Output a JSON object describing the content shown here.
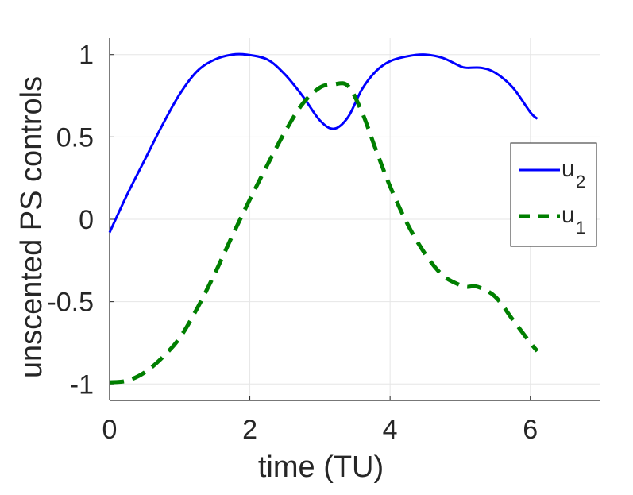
{
  "chart_data": {
    "type": "line",
    "title": "",
    "xlabel": "time (TU)",
    "ylabel": "unscented PS controls",
    "xlim": [
      0,
      7
    ],
    "ylim": [
      -1.1,
      1.1
    ],
    "grid": true,
    "legend_placement": "east",
    "x_ticks": [
      {
        "value": 0,
        "label": "0"
      },
      {
        "value": 2,
        "label": "2"
      },
      {
        "value": 4,
        "label": "4"
      },
      {
        "value": 6,
        "label": "6"
      }
    ],
    "y_ticks": [
      {
        "value": -1,
        "label": "-1"
      },
      {
        "value": -0.5,
        "label": "-0.5"
      },
      {
        "value": 0,
        "label": "0"
      },
      {
        "value": 0.5,
        "label": "0.5"
      },
      {
        "value": 1,
        "label": "1"
      }
    ],
    "series": [
      {
        "name": "u",
        "subscript": "2",
        "color": "#0000ff",
        "dash": "solid",
        "x": [
          0,
          0.25,
          0.5,
          0.75,
          1.0,
          1.25,
          1.5,
          1.75,
          1.95,
          2.25,
          2.5,
          2.75,
          3.0,
          3.2,
          3.4,
          3.6,
          3.8,
          4.0,
          4.25,
          4.5,
          4.75,
          5.0,
          5.1,
          5.3,
          5.5,
          5.75,
          6.0,
          6.1
        ],
        "y": [
          -0.08,
          0.15,
          0.36,
          0.57,
          0.76,
          0.9,
          0.97,
          1.0,
          1.0,
          0.97,
          0.88,
          0.75,
          0.6,
          0.55,
          0.62,
          0.79,
          0.9,
          0.96,
          0.99,
          1.0,
          0.98,
          0.93,
          0.92,
          0.92,
          0.89,
          0.8,
          0.65,
          0.61
        ]
      },
      {
        "name": "u",
        "subscript": "1",
        "color": "#007f00",
        "dash": "dashed",
        "x": [
          0,
          0.25,
          0.5,
          0.75,
          1.0,
          1.25,
          1.5,
          1.75,
          2.0,
          2.25,
          2.5,
          2.75,
          3.0,
          3.2,
          3.4,
          3.6,
          3.8,
          4.0,
          4.25,
          4.5,
          4.75,
          5.0,
          5.1,
          5.25,
          5.5,
          5.75,
          6.0,
          6.1
        ],
        "y": [
          -0.99,
          -0.98,
          -0.93,
          -0.84,
          -0.72,
          -0.54,
          -0.33,
          -0.1,
          0.12,
          0.33,
          0.53,
          0.7,
          0.8,
          0.82,
          0.81,
          0.65,
          0.42,
          0.2,
          -0.03,
          -0.21,
          -0.34,
          -0.4,
          -0.41,
          -0.41,
          -0.47,
          -0.61,
          -0.75,
          -0.8
        ]
      }
    ]
  }
}
